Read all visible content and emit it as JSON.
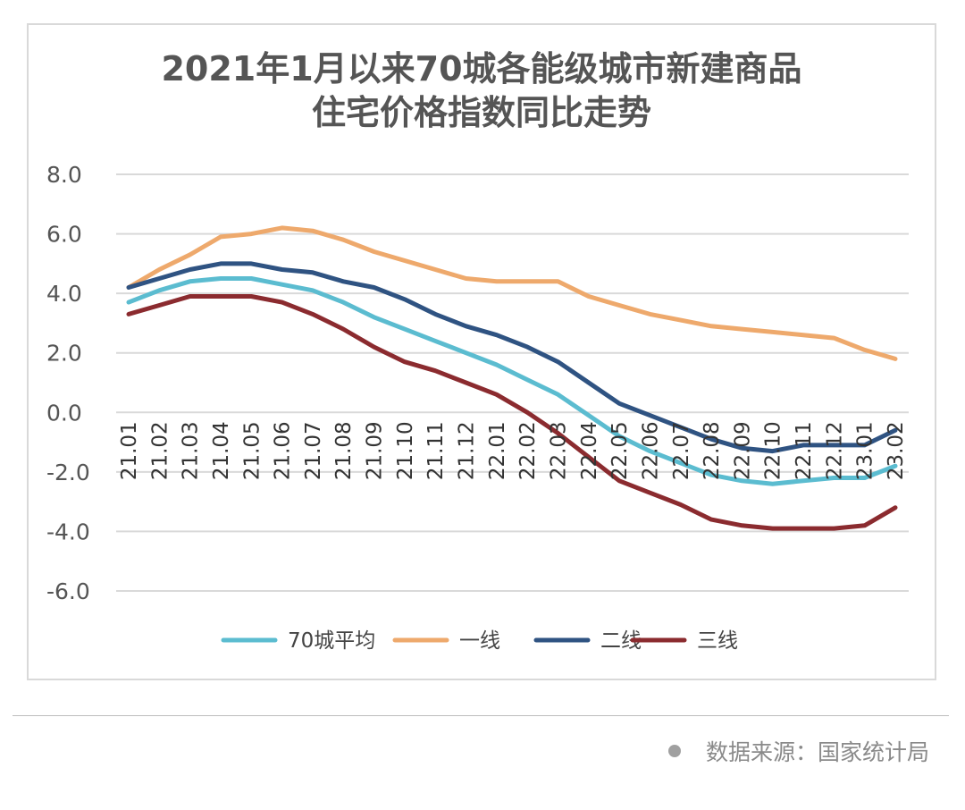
{
  "chart_data": {
    "type": "line",
    "title_lines": [
      "2021年1月以来70城各能级城市新建商品",
      "住宅价格指数同比走势"
    ],
    "categories": [
      "21.01",
      "21.02",
      "21.03",
      "21.04",
      "21.05",
      "21.06",
      "21.07",
      "21.08",
      "21.09",
      "21.10",
      "21.11",
      "21.12",
      "22.01",
      "22.02",
      "22.03",
      "22.04",
      "22.05",
      "22.06",
      "22.07",
      "22.08",
      "22.09",
      "22.10",
      "22.11",
      "22.12",
      "23.01",
      "23.02"
    ],
    "ylim": [
      -6,
      8
    ],
    "yticks": [
      8,
      6,
      4,
      2,
      0,
      -2,
      -4,
      -6
    ],
    "ytick_labels": [
      "8.0",
      "6.0",
      "4.0",
      "2.0",
      "0.0",
      "-2.0",
      "-4.0",
      "-6.0"
    ],
    "grid": true,
    "legend_position": "bottom",
    "series": [
      {
        "name": "70城平均",
        "color": "#5bbcd0",
        "values": [
          3.7,
          4.1,
          4.4,
          4.5,
          4.5,
          4.3,
          4.1,
          3.7,
          3.2,
          2.8,
          2.4,
          2.0,
          1.6,
          1.1,
          0.6,
          -0.1,
          -0.8,
          -1.3,
          -1.7,
          -2.1,
          -2.3,
          -2.4,
          -2.3,
          -2.2,
          -2.2,
          -1.8
        ]
      },
      {
        "name": "一线",
        "color": "#eea96c",
        "values": [
          4.2,
          4.8,
          5.3,
          5.9,
          6.0,
          6.2,
          6.1,
          5.8,
          5.4,
          5.1,
          4.8,
          4.5,
          4.4,
          4.4,
          4.4,
          3.9,
          3.6,
          3.3,
          3.1,
          2.9,
          2.8,
          2.7,
          2.6,
          2.5,
          2.1,
          1.8
        ]
      },
      {
        "name": "二线",
        "color": "#2f5382",
        "values": [
          4.2,
          4.5,
          4.8,
          5.0,
          5.0,
          4.8,
          4.7,
          4.4,
          4.2,
          3.8,
          3.3,
          2.9,
          2.6,
          2.2,
          1.7,
          1.0,
          0.3,
          -0.1,
          -0.5,
          -0.9,
          -1.2,
          -1.3,
          -1.1,
          -1.1,
          -1.1,
          -0.6
        ]
      },
      {
        "name": "三线",
        "color": "#8b2b2f",
        "values": [
          3.3,
          3.6,
          3.9,
          3.9,
          3.9,
          3.7,
          3.3,
          2.8,
          2.2,
          1.7,
          1.4,
          1.0,
          0.6,
          0.0,
          -0.7,
          -1.5,
          -2.3,
          -2.7,
          -3.1,
          -3.6,
          -3.8,
          -3.9,
          -3.9,
          -3.9,
          -3.8,
          -3.2
        ]
      }
    ]
  },
  "footer": {
    "source_text": "数据来源：国家统计局"
  }
}
